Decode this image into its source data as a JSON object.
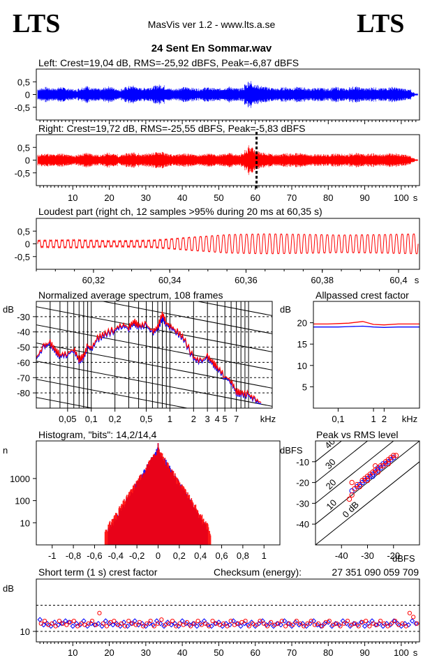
{
  "header": {
    "logo_left": "LTS",
    "logo_right": "LTS",
    "app_title": "MasVis ver 1.2 - www.lts.a.se",
    "file_name": "24 Sent En Sommar.wav"
  },
  "colors": {
    "left": "#0000ff",
    "right": "#ff0000",
    "grid": "#000000"
  },
  "chart_data": [
    {
      "id": "left-wave",
      "type": "area",
      "title": "Left: Crest=19,04 dB, RMS=-25,92 dBFS, Peak=-6,87 dBFS",
      "ylim": [
        -1,
        1
      ],
      "yticks": [
        "0,5",
        "0",
        "-0,5"
      ],
      "xlim": [
        0,
        105
      ],
      "series": [
        {
          "name": "Left",
          "envelope": [
            0.24,
            0.27,
            0.3,
            0.26,
            0.25,
            0.28,
            0.31,
            0.27,
            0.24,
            0.22,
            0.2,
            0.25,
            0.3,
            0.35,
            0.3,
            0.26,
            0.24,
            0.22,
            0.28,
            0.33,
            0.3,
            0.26,
            0.2,
            0.24,
            0.3,
            0.34,
            0.36,
            0.3,
            0.26,
            0.27,
            0.3,
            0.32,
            0.36,
            0.4,
            0.37,
            0.3,
            0.25,
            0.22,
            0.25,
            0.28,
            0.3,
            0.3,
            0.27,
            0.25,
            0.24,
            0.26,
            0.3,
            0.28,
            0.26,
            0.24,
            0.25,
            0.28,
            0.32,
            0.3,
            0.26,
            0.24,
            0.28,
            0.42,
            0.55,
            0.45,
            0.38,
            0.35,
            0.32,
            0.3,
            0.28,
            0.25,
            0.24,
            0.28,
            0.3,
            0.28,
            0.27,
            0.3,
            0.3,
            0.28,
            0.25,
            0.24,
            0.26,
            0.28,
            0.26,
            0.24,
            0.24,
            0.28,
            0.3,
            0.27,
            0.25,
            0.24,
            0.3,
            0.32,
            0.3,
            0.27,
            0.25,
            0.27,
            0.3,
            0.28,
            0.26,
            0.25,
            0.28,
            0.31,
            0.3,
            0.27,
            0.25,
            0.24,
            0.2,
            0.1,
            0.04
          ]
        }
      ]
    },
    {
      "id": "right-wave",
      "type": "area",
      "title": "Right: Crest=19,72 dB, RMS=-25,55 dBFS, Peak=-5,83 dBFS",
      "ylim": [
        -1,
        1
      ],
      "yticks": [
        "0,5",
        "0",
        "-0,5"
      ],
      "xlim": [
        0,
        105
      ],
      "xticks": [
        10,
        20,
        30,
        40,
        50,
        60,
        70,
        80,
        90,
        100
      ],
      "xunit": "s",
      "marker_x": 60.35,
      "series": [
        {
          "name": "Right",
          "envelope": [
            0.22,
            0.25,
            0.27,
            0.24,
            0.23,
            0.26,
            0.28,
            0.25,
            0.22,
            0.2,
            0.19,
            0.23,
            0.27,
            0.3,
            0.27,
            0.24,
            0.22,
            0.2,
            0.25,
            0.3,
            0.28,
            0.24,
            0.19,
            0.22,
            0.27,
            0.3,
            0.32,
            0.28,
            0.24,
            0.25,
            0.27,
            0.3,
            0.32,
            0.35,
            0.33,
            0.28,
            0.23,
            0.2,
            0.23,
            0.26,
            0.27,
            0.27,
            0.25,
            0.23,
            0.22,
            0.24,
            0.27,
            0.26,
            0.24,
            0.22,
            0.23,
            0.26,
            0.29,
            0.28,
            0.24,
            0.22,
            0.27,
            0.4,
            0.6,
            0.5,
            0.4,
            0.35,
            0.3,
            0.28,
            0.26,
            0.23,
            0.22,
            0.26,
            0.28,
            0.26,
            0.25,
            0.28,
            0.28,
            0.26,
            0.23,
            0.22,
            0.24,
            0.26,
            0.24,
            0.22,
            0.22,
            0.26,
            0.28,
            0.25,
            0.23,
            0.22,
            0.27,
            0.29,
            0.27,
            0.25,
            0.23,
            0.25,
            0.27,
            0.26,
            0.24,
            0.23,
            0.26,
            0.28,
            0.27,
            0.25,
            0.23,
            0.22,
            0.18,
            0.09,
            0.04
          ]
        }
      ]
    },
    {
      "id": "loudest-part",
      "type": "line",
      "title": "Loudest part (right ch, 12 samples >95% during 20 ms at 60,35 s)",
      "ylim": [
        -1,
        1
      ],
      "yticks": [
        "0,5",
        "0",
        "-0,5"
      ],
      "xlim": [
        60.305,
        60.4055
      ],
      "xticks": [
        "60,32",
        "60,34",
        "60,36",
        "60,38",
        "60,4"
      ],
      "xunit": "s",
      "series": [
        {
          "name": "Right",
          "cycles": 66,
          "amplitude": [
            0.15,
            0.18,
            0.12,
            0.16,
            0.3,
            0.42,
            0.45,
            0.43,
            0.4,
            0.42,
            0.45
          ]
        }
      ]
    },
    {
      "id": "avg-spectrum",
      "type": "line",
      "title": "Normalized average spectrum, 108 frames",
      "ylabel": "dB",
      "ylim": [
        -90,
        -20
      ],
      "yticks": [
        "-30",
        "-40",
        "-50",
        "-60",
        "-70",
        "-80"
      ],
      "xlim": [
        0.02,
        20
      ],
      "xscale": "log",
      "xticks": [
        "0,05",
        "0,1",
        "0,2",
        "0,5",
        "1",
        "2",
        "3",
        "4",
        "5",
        "7"
      ],
      "xunit": "kHz",
      "x": [
        0.02,
        0.025,
        0.03,
        0.035,
        0.04,
        0.05,
        0.06,
        0.07,
        0.08,
        0.09,
        0.1,
        0.12,
        0.15,
        0.2,
        0.25,
        0.3,
        0.35,
        0.4,
        0.5,
        0.6,
        0.7,
        0.8,
        0.9,
        1,
        1.2,
        1.5,
        2,
        2.5,
        3,
        3.5,
        4,
        5,
        6,
        7,
        8,
        10,
        12,
        15
      ],
      "series": [
        {
          "name": "Left",
          "values": [
            -58,
            -50,
            -48,
            -53,
            -56,
            -55,
            -52,
            -59,
            -57,
            -50,
            -52,
            -45,
            -42,
            -39,
            -36,
            -38,
            -34,
            -37,
            -36,
            -41,
            -38,
            -31,
            -35,
            -37,
            -40,
            -45,
            -58,
            -60,
            -57,
            -61,
            -64,
            -70,
            -73,
            -80,
            -81,
            -82,
            -85,
            -88
          ]
        },
        {
          "name": "Right",
          "values": [
            -57,
            -49,
            -47,
            -52,
            -55,
            -54,
            -51,
            -58,
            -56,
            -49,
            -51,
            -44,
            -41,
            -38,
            -35,
            -37,
            -33,
            -36,
            -35,
            -40,
            -37,
            -28,
            -34,
            -36,
            -39,
            -44,
            -57,
            -59,
            -56,
            -60,
            -63,
            -69,
            -72,
            -79,
            -80,
            -81,
            -84,
            -87
          ]
        }
      ]
    },
    {
      "id": "allpassed-crest",
      "type": "line",
      "title": "Allpassed crest factor",
      "ylabel": "dB",
      "ylim": [
        0,
        25
      ],
      "yticks": [
        "20",
        "15",
        "10",
        "5"
      ],
      "xlim": [
        0.02,
        20
      ],
      "xscale": "log",
      "xticks": [
        "0,1",
        "1",
        "2"
      ],
      "xunit": "kHz",
      "x": [
        0.02,
        0.05,
        0.1,
        0.2,
        0.5,
        1,
        2,
        5,
        10,
        20
      ],
      "series": [
        {
          "name": "Left",
          "values": [
            19.0,
            19.0,
            19.0,
            19.1,
            19.2,
            19.0,
            18.9,
            19.0,
            19.0,
            19.0
          ]
        },
        {
          "name": "Right",
          "values": [
            19.7,
            19.7,
            19.8,
            19.9,
            20.3,
            19.6,
            19.5,
            19.7,
            19.7,
            19.7
          ]
        }
      ]
    },
    {
      "id": "histogram",
      "type": "bar",
      "title": "Histogram, \"bits\": 14,2/14,4",
      "ylabel": "n",
      "yscale": "log",
      "ylim": [
        1,
        50000
      ],
      "yticks": [
        "1000",
        "100",
        "10"
      ],
      "xlim": [
        -1.15,
        1.15
      ],
      "xticks": [
        "-1",
        "-0,8",
        "-0,6",
        "-0,4",
        "-0,2",
        "0",
        "0,2",
        "0,4",
        "0,6",
        "0,8",
        "1"
      ],
      "series": [
        {
          "name": "Left",
          "range": 0.47,
          "decay": 18
        },
        {
          "name": "Right",
          "range": 0.5,
          "decay": 17
        }
      ]
    },
    {
      "id": "peak-vs-rms",
      "type": "scatter",
      "title": "Peak vs RMS level",
      "ylabel": "dBFS",
      "xlabel": "dBFS",
      "xlim": [
        -50,
        -10
      ],
      "ylim": [
        -50,
        0
      ],
      "xticks": [
        "-40",
        "-30",
        "-20"
      ],
      "yticks": [
        "-10",
        "-20",
        "-30",
        "-40"
      ],
      "diagonals": [
        "40",
        "30",
        "20",
        "10",
        "0 dB"
      ],
      "series": [
        {
          "name": "Left",
          "points": [
            [
              -36,
              -24
            ],
            [
              -34,
              -22
            ],
            [
              -33,
              -21
            ],
            [
              -31,
              -19
            ],
            [
              -30,
              -18
            ],
            [
              -29,
              -17
            ],
            [
              -28,
              -16
            ],
            [
              -27,
              -15
            ],
            [
              -26,
              -14
            ],
            [
              -25,
              -13
            ],
            [
              -24,
              -12
            ],
            [
              -23,
              -11
            ],
            [
              -22,
              -10
            ],
            [
              -21,
              -9
            ],
            [
              -20,
              -8
            ],
            [
              -32,
              -20
            ],
            [
              -28,
              -17
            ],
            [
              -26,
              -13
            ],
            [
              -24,
              -11
            ]
          ]
        },
        {
          "name": "Right",
          "points": [
            [
              -37,
              -28
            ],
            [
              -36,
              -26
            ],
            [
              -35,
              -23
            ],
            [
              -34,
              -21
            ],
            [
              -33,
              -22
            ],
            [
              -32,
              -19
            ],
            [
              -31,
              -18
            ],
            [
              -30,
              -19
            ],
            [
              -29,
              -16
            ],
            [
              -28,
              -15
            ],
            [
              -27,
              -14
            ],
            [
              -26,
              -15
            ],
            [
              -25,
              -12
            ],
            [
              -24,
              -12
            ],
            [
              -23,
              -10
            ],
            [
              -22,
              -9
            ],
            [
              -21,
              -8
            ],
            [
              -20,
              -7
            ],
            [
              -19,
              -7
            ],
            [
              -36,
              -20
            ],
            [
              -30,
              -17
            ],
            [
              -27,
              -12
            ],
            [
              -22,
              -11
            ]
          ]
        }
      ]
    },
    {
      "id": "short-term-crest",
      "type": "scatter",
      "title": "Short term (1 s) crest factor",
      "checksum_label": "Checksum (energy):",
      "checksum_value": "27 351 090 059 709",
      "ylabel": "dB",
      "ylim": [
        6,
        30
      ],
      "yticks": [
        "10"
      ],
      "dashed_y": [
        20,
        10
      ],
      "xlim": [
        0,
        105
      ],
      "xticks": [
        10,
        20,
        30,
        40,
        50,
        60,
        70,
        80,
        90,
        100
      ],
      "xunit": "s",
      "series": [
        {
          "name": "Left",
          "values": [
            14.5,
            12.5,
            13,
            12,
            13.5,
            12.5,
            13,
            14,
            13.5,
            12,
            13,
            12.5,
            14,
            12,
            13,
            12.5,
            13,
            12,
            14,
            13,
            12.5,
            13,
            12,
            13.5,
            12,
            13,
            14,
            12.5,
            13,
            12,
            13,
            12.5,
            14,
            13,
            12,
            13.5,
            12.5,
            13,
            12,
            14,
            13,
            12.5,
            13,
            12,
            13,
            14,
            12.5,
            12,
            13,
            13.5,
            12,
            13,
            12.5,
            14,
            13,
            12,
            13,
            12.5,
            13.5,
            12,
            13,
            14,
            12.5,
            13,
            12,
            13,
            12.5,
            14,
            13,
            12,
            13.5,
            12.5,
            13,
            12,
            13,
            14,
            12.5,
            12,
            13,
            13.5,
            12,
            13,
            12.5,
            14,
            13,
            12,
            13,
            12.5,
            13.5,
            12,
            13,
            14,
            12.5,
            13,
            12,
            13,
            12.5,
            14,
            13,
            12,
            13,
            12.5,
            14,
            13
          ]
        },
        {
          "name": "Right",
          "values": [
            13,
            14,
            12.5,
            13,
            12,
            14,
            13,
            12.5,
            13.5,
            14,
            12,
            13,
            12.5,
            13,
            14,
            12.5,
            17,
            13,
            12,
            13.5,
            14,
            12.5,
            13,
            12,
            14,
            13,
            12.5,
            13.5,
            12,
            13,
            14,
            12,
            13,
            14.5,
            12.5,
            13,
            14,
            12,
            13,
            12.5,
            13.5,
            12,
            13,
            14,
            12.5,
            13,
            12,
            14,
            13,
            12.5,
            13,
            12,
            14,
            12.5,
            13,
            13.5,
            14,
            12,
            13,
            12.5,
            14,
            13,
            12,
            13.5,
            12.5,
            13,
            14,
            12,
            13,
            12.5,
            14,
            13,
            12,
            13,
            14,
            12.5,
            13,
            12,
            13.5,
            14,
            12.5,
            13,
            12,
            13,
            14,
            12.5,
            13,
            12,
            13.5,
            14,
            12,
            13,
            12.5,
            14,
            13,
            12,
            13,
            14,
            12.5,
            13,
            12,
            17,
            15.5,
            13
          ]
        }
      ]
    }
  ]
}
